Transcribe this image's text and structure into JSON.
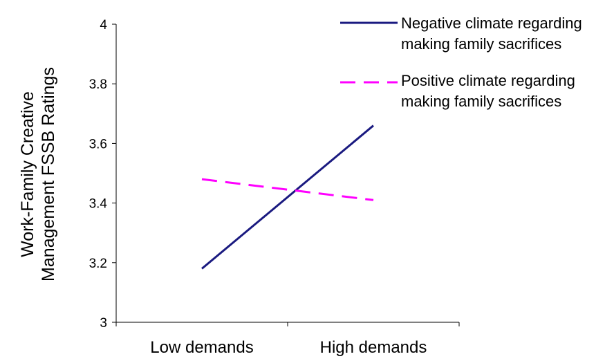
{
  "chart_data": {
    "type": "line",
    "title": "",
    "xlabel": "",
    "ylabel_lines": [
      "Work-Family Creative",
      "Management  FSSB Ratings"
    ],
    "categories": [
      "Low demands",
      "High demands"
    ],
    "ylim": [
      3,
      4
    ],
    "yticks": [
      "3",
      "3.2",
      "3.4",
      "3.6",
      "3.8",
      "4"
    ],
    "ytick_values": [
      3,
      3.2,
      3.4,
      3.6,
      3.8,
      4
    ],
    "grid": false,
    "legend_position": "top-right",
    "series": [
      {
        "name_lines": [
          "Negative climate regarding",
          "making family sacrifices"
        ],
        "values": [
          3.18,
          3.66
        ],
        "color": "#1a1a80",
        "style": "solid"
      },
      {
        "name_lines": [
          "Positive climate regarding",
          "making family sacrifices"
        ],
        "values": [
          3.48,
          3.41
        ],
        "color": "#ff00ff",
        "style": "dashed"
      }
    ]
  }
}
